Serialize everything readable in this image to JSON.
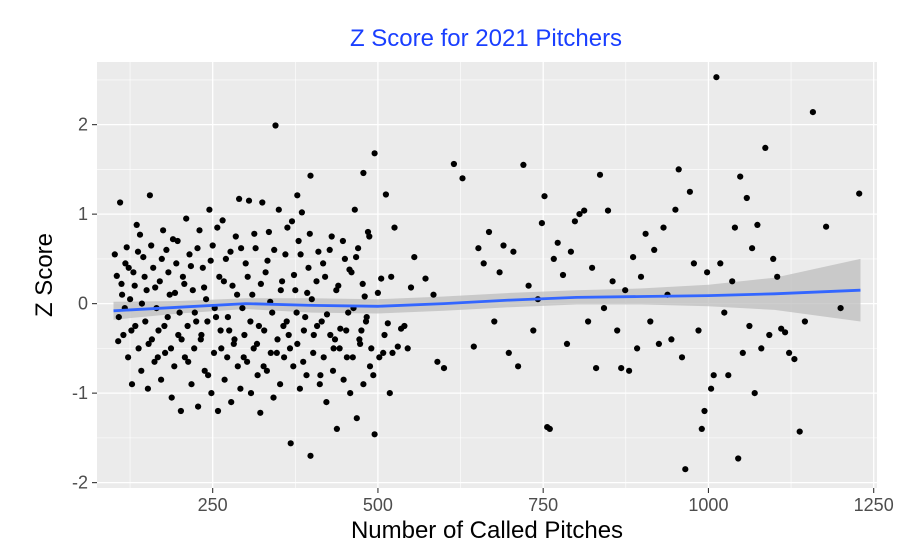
{
  "chart_data": {
    "type": "scatter",
    "title": "Z Score for 2021 Pitchers",
    "xlabel": "Number of Called Pitches",
    "ylabel": "Z Score",
    "xlim": [
      75,
      1255
    ],
    "ylim": [
      -2.06,
      2.7
    ],
    "x_ticks": [
      250,
      500,
      750,
      1000,
      1250
    ],
    "y_ticks": [
      -2,
      -1,
      0,
      1,
      2
    ],
    "x_minor": [
      125,
      375,
      625,
      875,
      1125
    ],
    "y_minor": [
      -1.5,
      -0.5,
      0.5,
      1.5,
      2.5
    ],
    "grid": true,
    "colors": {
      "panel": "#ebebeb",
      "grid": "#ffffff",
      "points": "#000000",
      "smooth_line": "#3366ff",
      "ribbon": "#bebebe",
      "title": "#1a3fff"
    },
    "smooth": {
      "x": [
        100,
        200,
        300,
        400,
        500,
        600,
        700,
        800,
        900,
        1000,
        1100,
        1230
      ],
      "y": [
        -0.08,
        -0.04,
        0.0,
        -0.02,
        -0.03,
        0.0,
        0.04,
        0.07,
        0.08,
        0.09,
        0.11,
        0.15
      ],
      "upper": [
        0.02,
        0.03,
        0.06,
        0.06,
        0.05,
        0.08,
        0.12,
        0.15,
        0.17,
        0.21,
        0.29,
        0.5
      ],
      "lower": [
        -0.18,
        -0.11,
        -0.06,
        -0.1,
        -0.11,
        -0.08,
        -0.04,
        -0.01,
        -0.01,
        -0.03,
        -0.07,
        -0.2
      ]
    },
    "points": [
      [
        110,
        1.13
      ],
      [
        135,
        0.88
      ],
      [
        155,
        1.21
      ],
      [
        140,
        0.77
      ],
      [
        120,
        0.63
      ],
      [
        175,
        0.82
      ],
      [
        190,
        0.72
      ],
      [
        210,
        0.95
      ],
      [
        230,
        0.82
      ],
      [
        245,
        1.05
      ],
      [
        265,
        0.93
      ],
      [
        290,
        1.17
      ],
      [
        305,
        1.15
      ],
      [
        325,
        1.13
      ],
      [
        350,
        1.05
      ],
      [
        370,
        0.92
      ],
      [
        385,
        1.02
      ],
      [
        345,
        1.99
      ],
      [
        378,
        1.21
      ],
      [
        398,
        1.43
      ],
      [
        465,
        1.05
      ],
      [
        478,
        1.46
      ],
      [
        495,
        1.68
      ],
      [
        512,
        1.22
      ],
      [
        525,
        0.85
      ],
      [
        555,
        0.52
      ],
      [
        572,
        0.28
      ],
      [
        105,
        0.31
      ],
      [
        112,
        0.22
      ],
      [
        118,
        0.45
      ],
      [
        125,
        0.05
      ],
      [
        130,
        0.35
      ],
      [
        145,
        0.52
      ],
      [
        150,
        0.15
      ],
      [
        160,
        0.4
      ],
      [
        165,
        -0.05
      ],
      [
        170,
        0.25
      ],
      [
        180,
        0.6
      ],
      [
        185,
        0.1
      ],
      [
        195,
        0.45
      ],
      [
        200,
        -0.1
      ],
      [
        205,
        0.3
      ],
      [
        215,
        0.55
      ],
      [
        220,
        0.15
      ],
      [
        225,
        -0.2
      ],
      [
        235,
        0.4
      ],
      [
        240,
        0.05
      ],
      [
        250,
        0.65
      ],
      [
        255,
        -0.15
      ],
      [
        260,
        0.3
      ],
      [
        270,
        0.5
      ],
      [
        275,
        -0.3
      ],
      [
        280,
        0.2
      ],
      [
        285,
        0.75
      ],
      [
        295,
        -0.05
      ],
      [
        300,
        0.45
      ],
      [
        310,
        0.1
      ],
      [
        315,
        0.62
      ],
      [
        320,
        -0.25
      ],
      [
        330,
        0.35
      ],
      [
        335,
        0.8
      ],
      [
        340,
        -0.1
      ],
      [
        355,
        0.25
      ],
      [
        360,
        0.55
      ],
      [
        365,
        -0.35
      ],
      [
        375,
        0.15
      ],
      [
        380,
        0.7
      ],
      [
        390,
        -0.15
      ],
      [
        395,
        0.4
      ],
      [
        400,
        0.05
      ],
      [
        410,
        0.58
      ],
      [
        415,
        -0.2
      ],
      [
        420,
        0.3
      ],
      [
        430,
        0.75
      ],
      [
        435,
        -0.4
      ],
      [
        440,
        0.2
      ],
      [
        450,
        0.5
      ],
      [
        455,
        -0.1
      ],
      [
        460,
        0.35
      ],
      [
        470,
        0.62
      ],
      [
        475,
        -0.3
      ],
      [
        480,
        0.08
      ],
      [
        485,
        0.8
      ],
      [
        490,
        -0.5
      ],
      [
        505,
        0.28
      ],
      [
        515,
        -0.22
      ],
      [
        520,
        0.3
      ],
      [
        530,
        -0.48
      ],
      [
        540,
        -0.25
      ],
      [
        550,
        0.18
      ],
      [
        108,
        -0.15
      ],
      [
        115,
        -0.35
      ],
      [
        122,
        -0.6
      ],
      [
        128,
        -0.9
      ],
      [
        133,
        -0.25
      ],
      [
        138,
        -0.5
      ],
      [
        142,
        -0.75
      ],
      [
        148,
        -0.2
      ],
      [
        152,
        -0.95
      ],
      [
        158,
        -0.4
      ],
      [
        162,
        -0.65
      ],
      [
        168,
        -0.3
      ],
      [
        172,
        -0.85
      ],
      [
        178,
        -0.55
      ],
      [
        182,
        -0.15
      ],
      [
        188,
        -1.05
      ],
      [
        192,
        -0.7
      ],
      [
        198,
        -0.35
      ],
      [
        202,
        -1.2
      ],
      [
        208,
        -0.6
      ],
      [
        212,
        -0.25
      ],
      [
        218,
        -0.9
      ],
      [
        222,
        -0.5
      ],
      [
        228,
        -1.15
      ],
      [
        232,
        -0.4
      ],
      [
        238,
        -0.75
      ],
      [
        242,
        -0.2
      ],
      [
        248,
        -1.0
      ],
      [
        252,
        -0.55
      ],
      [
        258,
        -1.2
      ],
      [
        262,
        -0.3
      ],
      [
        268,
        -0.85
      ],
      [
        272,
        -0.6
      ],
      [
        278,
        -1.1
      ],
      [
        282,
        -0.45
      ],
      [
        288,
        -0.7
      ],
      [
        292,
        -0.95
      ],
      [
        298,
        -0.35
      ],
      [
        302,
        -0.65
      ],
      [
        308,
        -1.0
      ],
      [
        312,
        -0.5
      ],
      [
        318,
        -0.8
      ],
      [
        322,
        -1.22
      ],
      [
        328,
        -0.3
      ],
      [
        332,
        -0.75
      ],
      [
        338,
        -0.55
      ],
      [
        342,
        -1.05
      ],
      [
        348,
        -0.4
      ],
      [
        352,
        -0.9
      ],
      [
        358,
        -0.6
      ],
      [
        362,
        -0.2
      ],
      [
        368,
        -1.56
      ],
      [
        372,
        -0.7
      ],
      [
        378,
        -0.45
      ],
      [
        382,
        -0.95
      ],
      [
        388,
        -0.3
      ],
      [
        392,
        -0.8
      ],
      [
        398,
        -1.7
      ],
      [
        402,
        -0.55
      ],
      [
        408,
        -0.25
      ],
      [
        412,
        -0.9
      ],
      [
        418,
        -0.6
      ],
      [
        422,
        -1.1
      ],
      [
        428,
        -0.35
      ],
      [
        432,
        -0.75
      ],
      [
        438,
        -1.4
      ],
      [
        442,
        -0.5
      ],
      [
        448,
        -0.85
      ],
      [
        452,
        -0.3
      ],
      [
        458,
        -1.0
      ],
      [
        462,
        -0.6
      ],
      [
        468,
        -1.28
      ],
      [
        472,
        -0.4
      ],
      [
        478,
        -0.9
      ],
      [
        482,
        -0.2
      ],
      [
        488,
        -0.7
      ],
      [
        495,
        -1.46
      ],
      [
        502,
        -0.6
      ],
      [
        510,
        -0.35
      ],
      [
        518,
        -1.0
      ],
      [
        522,
        -0.55
      ],
      [
        535,
        -0.28
      ],
      [
        545,
        -0.5
      ],
      [
        102,
        0.55
      ],
      [
        107,
        -0.42
      ],
      [
        113,
        0.1
      ],
      [
        117,
        -0.05
      ],
      [
        123,
        0.4
      ],
      [
        127,
        -0.3
      ],
      [
        132,
        0.2
      ],
      [
        137,
        0.58
      ],
      [
        143,
        0.0
      ],
      [
        147,
        0.3
      ],
      [
        153,
        -0.45
      ],
      [
        157,
        0.65
      ],
      [
        163,
        0.18
      ],
      [
        167,
        -0.6
      ],
      [
        173,
        0.5
      ],
      [
        177,
        -0.25
      ],
      [
        183,
        0.35
      ],
      [
        187,
        -0.5
      ],
      [
        193,
        0.12
      ],
      [
        197,
        0.7
      ],
      [
        203,
        -0.4
      ],
      [
        207,
        0.22
      ],
      [
        213,
        -0.65
      ],
      [
        217,
        0.42
      ],
      [
        223,
        -0.1
      ],
      [
        227,
        0.62
      ],
      [
        233,
        -0.35
      ],
      [
        237,
        0.18
      ],
      [
        243,
        -0.8
      ],
      [
        247,
        0.48
      ],
      [
        253,
        -0.05
      ],
      [
        257,
        0.85
      ],
      [
        263,
        -0.5
      ],
      [
        267,
        0.25
      ],
      [
        273,
        -0.15
      ],
      [
        277,
        0.58
      ],
      [
        283,
        -0.4
      ],
      [
        287,
        0.1
      ],
      [
        293,
        0.62
      ],
      [
        297,
        -0.6
      ],
      [
        303,
        0.3
      ],
      [
        307,
        -0.2
      ],
      [
        313,
        0.78
      ],
      [
        317,
        -0.45
      ],
      [
        323,
        0.22
      ],
      [
        327,
        -0.7
      ],
      [
        333,
        0.48
      ],
      [
        337,
        0.02
      ],
      [
        343,
        0.6
      ],
      [
        347,
        -0.55
      ],
      [
        353,
        0.15
      ],
      [
        357,
        -0.25
      ],
      [
        363,
        0.85
      ],
      [
        367,
        -0.5
      ],
      [
        373,
        0.32
      ],
      [
        377,
        -0.1
      ],
      [
        383,
        0.55
      ],
      [
        387,
        -0.65
      ],
      [
        393,
        0.12
      ],
      [
        397,
        0.78
      ],
      [
        403,
        -0.35
      ],
      [
        407,
        0.25
      ],
      [
        413,
        -0.8
      ],
      [
        417,
        0.45
      ],
      [
        423,
        -0.12
      ],
      [
        427,
        0.6
      ],
      [
        433,
        -0.5
      ],
      [
        437,
        0.15
      ],
      [
        443,
        -0.28
      ],
      [
        447,
        0.7
      ],
      [
        453,
        -0.6
      ],
      [
        457,
        0.38
      ],
      [
        463,
        -0.05
      ],
      [
        467,
        0.52
      ],
      [
        473,
        -0.45
      ],
      [
        477,
        0.22
      ],
      [
        483,
        -0.15
      ],
      [
        487,
        0.75
      ],
      [
        493,
        -0.8
      ],
      [
        500,
        0.12
      ],
      [
        508,
        -0.55
      ],
      [
        584,
        0.1
      ],
      [
        590,
        -0.65
      ],
      [
        600,
        -0.72
      ],
      [
        615,
        1.56
      ],
      [
        628,
        1.4
      ],
      [
        645,
        -0.48
      ],
      [
        652,
        0.62
      ],
      [
        660,
        0.45
      ],
      [
        668,
        0.8
      ],
      [
        676,
        -0.2
      ],
      [
        684,
        0.35
      ],
      [
        690,
        0.65
      ],
      [
        698,
        -0.55
      ],
      [
        705,
        0.58
      ],
      [
        712,
        -0.7
      ],
      [
        720,
        1.55
      ],
      [
        728,
        0.2
      ],
      [
        735,
        -0.3
      ],
      [
        742,
        0.05
      ],
      [
        748,
        0.9
      ],
      [
        752,
        1.2
      ],
      [
        756,
        -1.38
      ],
      [
        760,
        -1.4
      ],
      [
        766,
        0.5
      ],
      [
        772,
        0.68
      ],
      [
        780,
        0.32
      ],
      [
        786,
        -0.45
      ],
      [
        792,
        0.58
      ],
      [
        798,
        0.92
      ],
      [
        805,
        1.0
      ],
      [
        812,
        1.04
      ],
      [
        818,
        -0.2
      ],
      [
        824,
        0.4
      ],
      [
        830,
        -0.72
      ],
      [
        836,
        1.44
      ],
      [
        842,
        -0.05
      ],
      [
        848,
        1.04
      ],
      [
        855,
        0.25
      ],
      [
        862,
        -0.3
      ],
      [
        868,
        -0.72
      ],
      [
        874,
        0.15
      ],
      [
        880,
        -0.75
      ],
      [
        886,
        0.52
      ],
      [
        892,
        -0.5
      ],
      [
        898,
        0.3
      ],
      [
        905,
        0.78
      ],
      [
        912,
        -0.2
      ],
      [
        918,
        0.6
      ],
      [
        925,
        -0.45
      ],
      [
        932,
        0.85
      ],
      [
        938,
        0.1
      ],
      [
        944,
        -0.4
      ],
      [
        950,
        1.05
      ],
      [
        955,
        1.5
      ],
      [
        960,
        -0.6
      ],
      [
        965,
        -1.85
      ],
      [
        972,
        1.25
      ],
      [
        978,
        0.45
      ],
      [
        985,
        -0.3
      ],
      [
        990,
        -1.4
      ],
      [
        994,
        -1.2
      ],
      [
        998,
        0.35
      ],
      [
        1004,
        -0.95
      ],
      [
        1008,
        -0.8
      ],
      [
        1012,
        2.53
      ],
      [
        1018,
        0.45
      ],
      [
        1024,
        -0.1
      ],
      [
        1030,
        -0.8
      ],
      [
        1036,
        0.25
      ],
      [
        1040,
        0.85
      ],
      [
        1045,
        -1.73
      ],
      [
        1048,
        1.42
      ],
      [
        1052,
        -0.55
      ],
      [
        1058,
        1.18
      ],
      [
        1062,
        -0.25
      ],
      [
        1066,
        0.62
      ],
      [
        1070,
        -1.0
      ],
      [
        1074,
        0.88
      ],
      [
        1080,
        -0.5
      ],
      [
        1086,
        1.74
      ],
      [
        1092,
        -0.35
      ],
      [
        1098,
        0.5
      ],
      [
        1104,
        0.3
      ],
      [
        1110,
        -0.28
      ],
      [
        1116,
        -0.32
      ],
      [
        1122,
        -0.55
      ],
      [
        1130,
        -0.62
      ],
      [
        1138,
        -1.43
      ],
      [
        1146,
        -0.2
      ],
      [
        1158,
        2.14
      ],
      [
        1178,
        0.86
      ],
      [
        1200,
        -0.05
      ],
      [
        1228,
        1.23
      ]
    ]
  }
}
